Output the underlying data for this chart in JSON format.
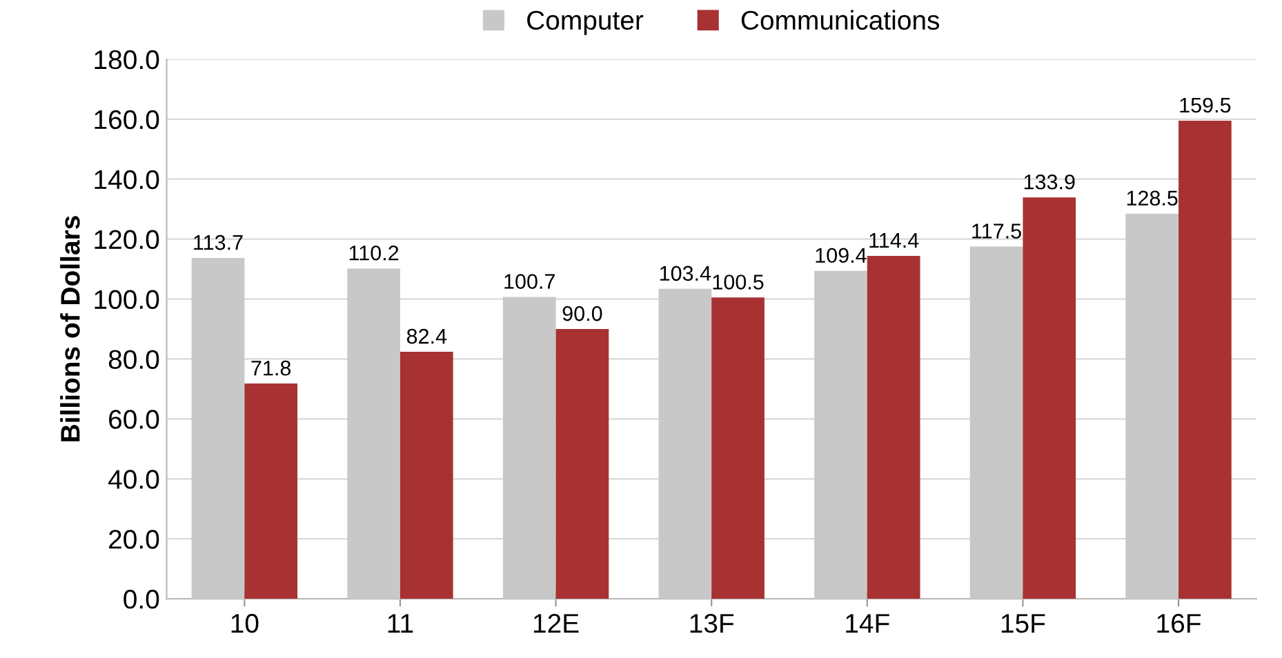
{
  "chart_data": {
    "type": "bar",
    "ylabel": "Billions of Dollars",
    "categories": [
      "10",
      "11",
      "12E",
      "13F",
      "14F",
      "15F",
      "16F"
    ],
    "series": [
      {
        "name": "Computer",
        "color": "#c8c8c8",
        "values": [
          113.7,
          110.2,
          100.7,
          103.4,
          109.4,
          117.5,
          128.5
        ]
      },
      {
        "name": "Communications",
        "color": "#a83232",
        "values": [
          71.8,
          82.4,
          90.0,
          100.5,
          114.4,
          133.9,
          159.5
        ]
      }
    ],
    "value_labels": [
      [
        "113.7",
        "110.2",
        "100.7",
        "103.4",
        "109.4",
        "117.5",
        "128.5"
      ],
      [
        "71.8",
        "82.4",
        "90.0",
        "100.5",
        "114.4",
        "133.9",
        "159.5"
      ]
    ],
    "ylim": [
      0,
      180
    ],
    "yticks": [
      {
        "value": 0,
        "label": "0.0"
      },
      {
        "value": 20,
        "label": "20.0"
      },
      {
        "value": 40,
        "label": "40.0"
      },
      {
        "value": 60,
        "label": "60.0"
      },
      {
        "value": 80,
        "label": "80.0"
      },
      {
        "value": 100,
        "label": "100.0"
      },
      {
        "value": 120,
        "label": "120.0"
      },
      {
        "value": 140,
        "label": "140.0"
      },
      {
        "value": 160,
        "label": "160.0"
      },
      {
        "value": 180,
        "label": "180.0"
      }
    ],
    "grid": "y",
    "legend": "top"
  }
}
